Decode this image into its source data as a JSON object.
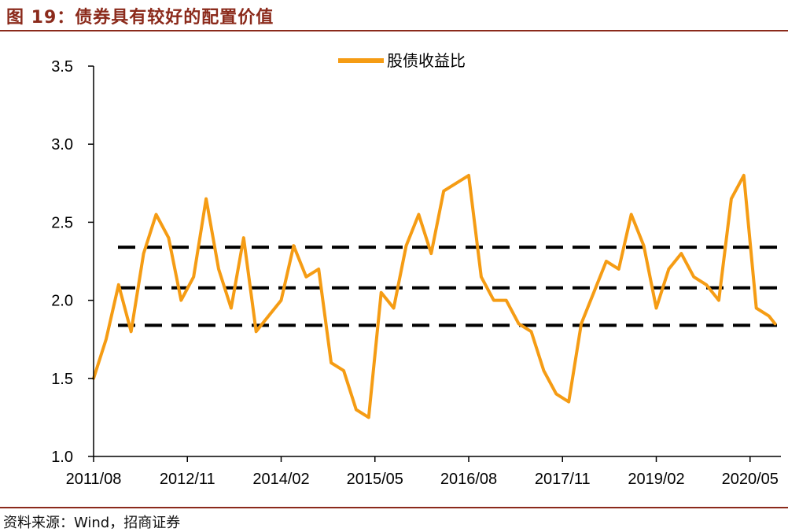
{
  "figure": {
    "title": "图 19：债券具有较好的配置价值",
    "source": "资料来源：Wind，招商证券"
  },
  "colors": {
    "series": "#f59c14",
    "reference": "#000000",
    "accent": "#8b2a1b"
  },
  "chart_data": {
    "type": "line",
    "title": "",
    "xlabel": "",
    "ylabel": "",
    "ylim": [
      1.0,
      3.5
    ],
    "yticks": [
      "1.0",
      "1.5",
      "2.0",
      "2.5",
      "3.0",
      "3.5"
    ],
    "xticks": [
      "2011/08",
      "2012/11",
      "2014/02",
      "2015/05",
      "2016/08",
      "2017/11",
      "2019/02",
      "2020/05"
    ],
    "legend": {
      "position": "top-center",
      "entries": [
        "股债收益比"
      ]
    },
    "series": [
      {
        "name": "股债收益比",
        "x": [
          "2011/08",
          "2011/10",
          "2011/12",
          "2012/02",
          "2012/04",
          "2012/06",
          "2012/08",
          "2012/10",
          "2012/12",
          "2013/02",
          "2013/04",
          "2013/06",
          "2013/08",
          "2013/10",
          "2013/12",
          "2014/02",
          "2014/04",
          "2014/06",
          "2014/08",
          "2014/10",
          "2014/12",
          "2015/02",
          "2015/04",
          "2015/06",
          "2015/08",
          "2015/10",
          "2015/12",
          "2016/02",
          "2016/04",
          "2016/06",
          "2016/08",
          "2016/10",
          "2016/12",
          "2017/02",
          "2017/04",
          "2017/06",
          "2017/08",
          "2017/10",
          "2017/12",
          "2018/02",
          "2018/04",
          "2018/06",
          "2018/08",
          "2018/10",
          "2018/12",
          "2019/02",
          "2019/04",
          "2019/06",
          "2019/08",
          "2019/10",
          "2019/12",
          "2020/02",
          "2020/04",
          "2020/06",
          "2020/08",
          "2020/09"
        ],
        "values": [
          1.5,
          1.75,
          2.1,
          1.8,
          2.3,
          2.55,
          2.4,
          2.0,
          2.15,
          2.65,
          2.2,
          1.95,
          2.4,
          1.8,
          1.9,
          2.0,
          2.35,
          2.15,
          2.2,
          1.6,
          1.55,
          1.3,
          1.25,
          2.05,
          1.95,
          2.35,
          2.55,
          2.3,
          2.7,
          2.75,
          2.8,
          2.15,
          2.0,
          2.0,
          1.85,
          1.8,
          1.55,
          1.4,
          1.35,
          1.85,
          2.05,
          2.25,
          2.2,
          2.55,
          2.35,
          1.95,
          2.2,
          2.3,
          2.15,
          2.1,
          2.0,
          2.65,
          2.8,
          1.95,
          1.9,
          1.85
        ]
      }
    ],
    "reference_lines": [
      2.34,
      2.08,
      1.84
    ]
  }
}
